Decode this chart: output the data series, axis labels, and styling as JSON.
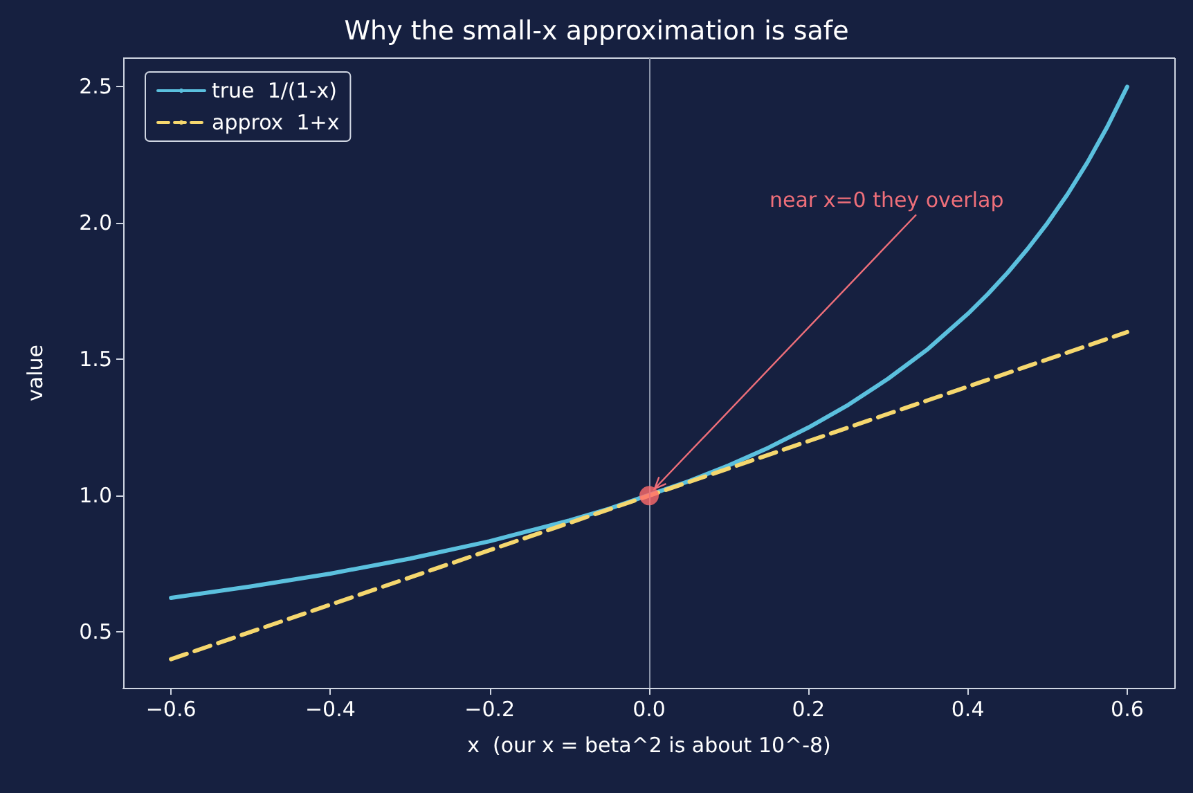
{
  "chart_data": {
    "type": "line",
    "title": "Why the small-x approximation is safe",
    "xlabel": "x  (our x = beta^2 is about 10^-8)",
    "ylabel": "value",
    "xlim": [
      -0.66,
      0.66
    ],
    "ylim": [
      0.295,
      2.605
    ],
    "xticks": [
      {
        "value": -0.6,
        "label": "−0.6"
      },
      {
        "value": -0.4,
        "label": "−0.4"
      },
      {
        "value": -0.2,
        "label": "−0.2"
      },
      {
        "value": 0,
        "label": "0.0"
      },
      {
        "value": 0.2,
        "label": "0.2"
      },
      {
        "value": 0.4,
        "label": "0.4"
      },
      {
        "value": 0.6,
        "label": "0.6"
      }
    ],
    "yticks": [
      {
        "value": 0.5,
        "label": "0.5"
      },
      {
        "value": 1,
        "label": "1.0"
      },
      {
        "value": 1.5,
        "label": "1.5"
      },
      {
        "value": 2,
        "label": "2.0"
      },
      {
        "value": 2.5,
        "label": "2.5"
      }
    ],
    "series": [
      {
        "name": "true  1/(1-x)",
        "color": "#5bc0de",
        "line_style": "solid",
        "x": [
          -0.6,
          -0.5,
          -0.4,
          -0.3,
          -0.2,
          -0.1,
          -0.05,
          0.05,
          0.1,
          0.15,
          0.2,
          0.25,
          0.3,
          0.35,
          0.4,
          0.425,
          0.45,
          0.475,
          0.5,
          0.525,
          0.55,
          0.575,
          0.6
        ],
        "values": [
          0.625,
          0.667,
          0.714,
          0.769,
          0.833,
          0.909,
          0.952,
          1.053,
          1.111,
          1.176,
          1.25,
          1.333,
          1.429,
          1.538,
          1.667,
          1.739,
          1.818,
          1.905,
          2,
          2.105,
          2.222,
          2.353,
          2.5
        ]
      },
      {
        "name": "approx  1+x",
        "color": "#f5d76e",
        "line_style": "dashed",
        "x": [
          -0.6,
          0.6
        ],
        "values": [
          0.4,
          1.6
        ]
      },
      {
        "type": "scatter",
        "color": "#ff6b6b",
        "marker": "circle",
        "x": [
          0
        ],
        "values": [
          1
        ]
      }
    ],
    "ref_lines": [
      {
        "axis": "x",
        "value": 0,
        "color": "#8a93a8"
      }
    ],
    "annotations": [
      {
        "text": "near x=0 they overlap",
        "x": 0,
        "y": 1
      }
    ],
    "legend": "top left",
    "grid": false,
    "marker": "none"
  }
}
